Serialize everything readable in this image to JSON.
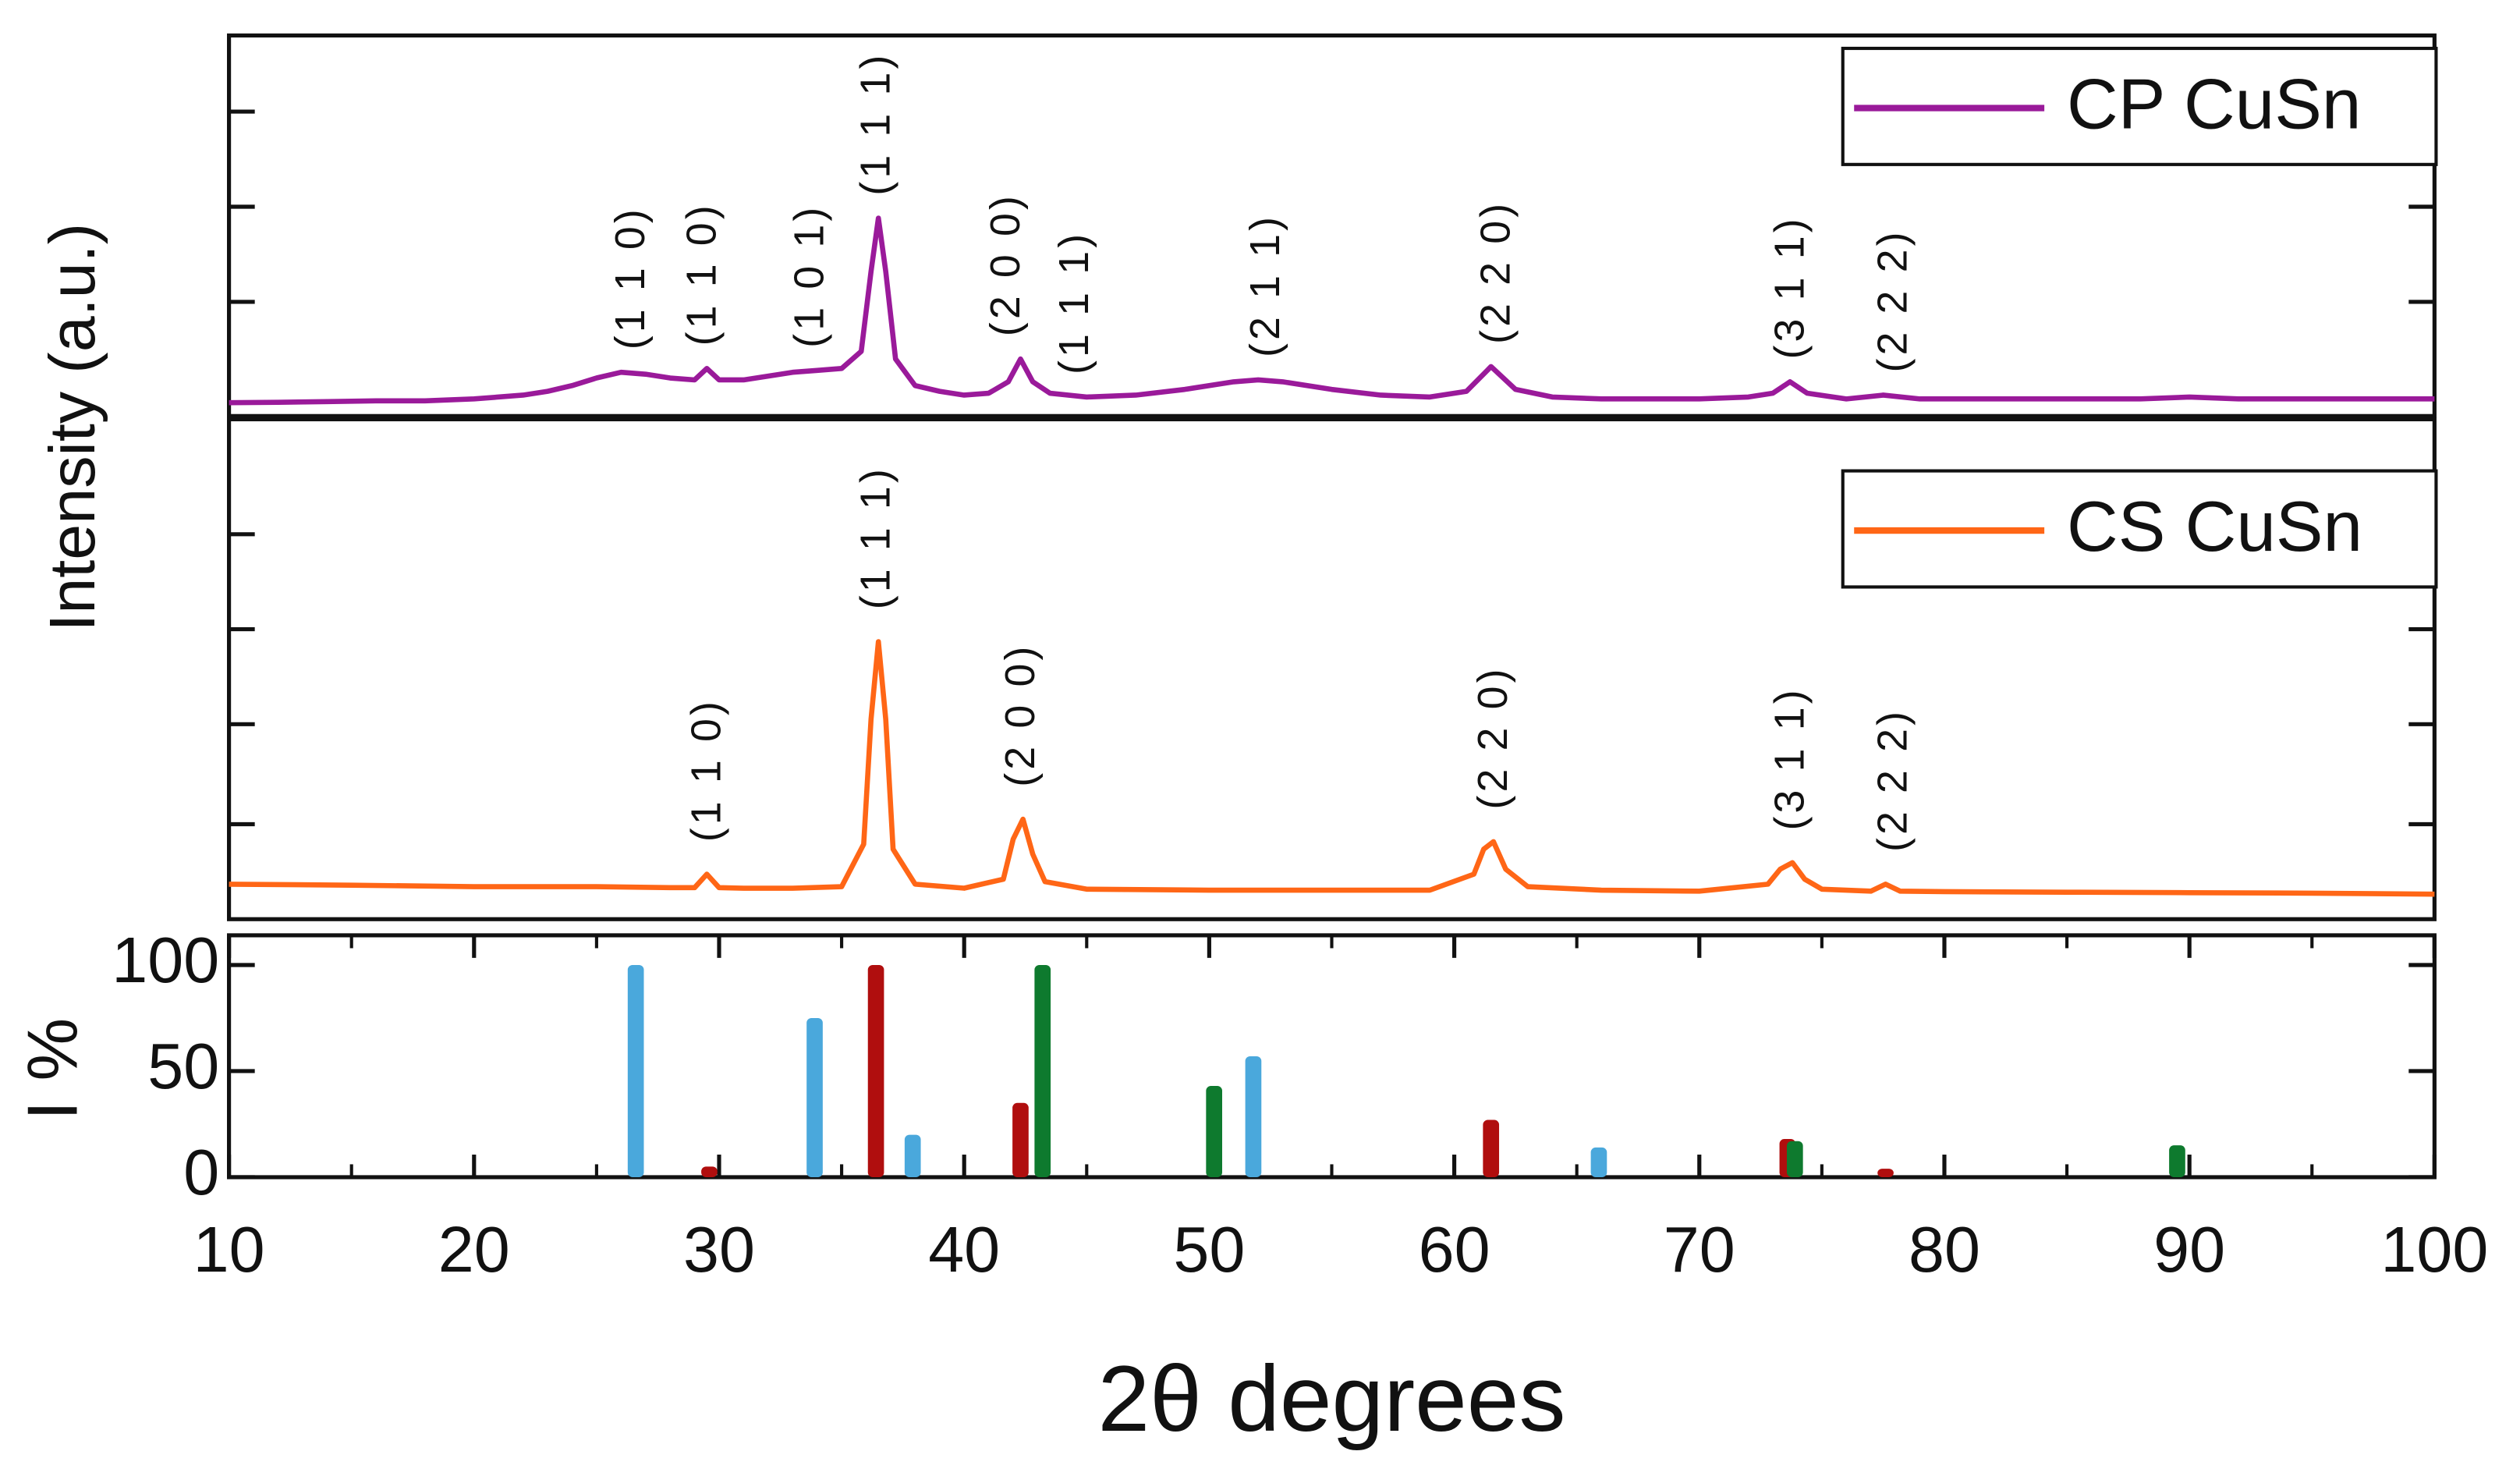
{
  "chart_data": [
    {
      "type": "line",
      "ylabel": "Intensity (a.u.)",
      "xlim": [
        10,
        100
      ],
      "ylim": [
        0,
        100
      ],
      "yticks": [
        30,
        55,
        80
      ],
      "series": [
        {
          "name": "CP CuSn",
          "color": "#9a1a9a",
          "x": [
            10,
            12,
            14,
            16,
            18,
            20,
            22,
            23,
            24,
            25,
            26,
            27,
            28,
            29,
            29.5,
            30,
            31,
            32,
            33,
            34,
            35,
            35.8,
            36.2,
            36.5,
            36.8,
            37.2,
            38,
            39,
            40,
            41,
            41.8,
            42.3,
            42.8,
            43.5,
            45,
            47,
            49,
            51,
            52,
            53,
            55,
            57,
            59,
            60.5,
            61.5,
            62.5,
            64,
            66,
            68,
            70,
            72,
            73,
            73.7,
            74.4,
            76,
            77.5,
            79,
            82,
            85,
            88,
            90,
            92,
            95,
            98,
            100
          ],
          "values": [
            3.5,
            3.6,
            3.8,
            4,
            4,
            4.5,
            5.5,
            6.5,
            8,
            10,
            11.5,
            11,
            10,
            9.5,
            12.5,
            9.5,
            9.5,
            10.5,
            11.5,
            12,
            12.5,
            17,
            38,
            52,
            38,
            15,
            8,
            6.5,
            5.5,
            6,
            9,
            15,
            9,
            6,
            5,
            5.5,
            7,
            9,
            9.5,
            9,
            7,
            5.5,
            5,
            6.5,
            13,
            7,
            5,
            4.5,
            4.5,
            4.5,
            5,
            6,
            9,
            6,
            4.5,
            5.5,
            4.5,
            4.5,
            4.5,
            4.5,
            5,
            4.5,
            4.5,
            4.5,
            4.5
          ]
        }
      ],
      "annotations": [
        {
          "text": "(1 1 0)",
          "x": 26.5
        },
        {
          "text": "(1 1 0)",
          "x": 29.4
        },
        {
          "text": "(1 0 1)",
          "x": 33.8
        },
        {
          "text": "(1 1 1)",
          "x": 36.5
        },
        {
          "text": "(2 0 0)",
          "x": 41.8
        },
        {
          "text": "(1 1 1)",
          "x": 44.6
        },
        {
          "text": "(2 1 1)",
          "x": 52.4
        },
        {
          "text": "(2 2 0)",
          "x": 61.8
        },
        {
          "text": "(3 1 1)",
          "x": 73.8
        },
        {
          "text": "(2 2 2)",
          "x": 78
        }
      ]
    },
    {
      "type": "line",
      "xlim": [
        10,
        100
      ],
      "ylim": [
        0,
        100
      ],
      "yticks": [
        19,
        39,
        58,
        77
      ],
      "series": [
        {
          "name": "CS CuSn",
          "color": "#ff6616",
          "x": [
            10,
            15,
            20,
            25,
            28,
            29,
            29.5,
            30,
            31,
            33,
            35,
            35.9,
            36.2,
            36.5,
            36.8,
            37.1,
            38,
            40,
            41.6,
            42.0,
            42.4,
            42.8,
            43.3,
            45,
            50,
            55,
            59,
            60.8,
            61.2,
            61.6,
            62.1,
            63,
            66,
            70,
            72.8,
            73.3,
            73.8,
            74.3,
            75,
            77,
            77.6,
            78.2,
            80,
            85,
            90,
            95,
            100
          ],
          "values": [
            7,
            6.8,
            6.5,
            6.5,
            6.3,
            6.3,
            9,
            6.3,
            6.2,
            6.2,
            6.5,
            15,
            40,
            55.5,
            40,
            14,
            7,
            6.2,
            8,
            16,
            20,
            13,
            7.5,
            6,
            5.8,
            5.8,
            5.8,
            9,
            14,
            15.5,
            10,
            6.5,
            5.8,
            5.6,
            7,
            10,
            11.3,
            8,
            6,
            5.6,
            7,
            5.6,
            5.5,
            5.4,
            5.3,
            5.2,
            5
          ]
        }
      ],
      "annotations": [
        {
          "text": "(1 1 0)",
          "x": 29.6
        },
        {
          "text": "(1 1 1)",
          "x": 36.5
        },
        {
          "text": "(2 0 0)",
          "x": 42.4
        },
        {
          "text": "(2 2 0)",
          "x": 61.7
        },
        {
          "text": "(3 1 1)",
          "x": 73.8
        },
        {
          "text": "(2 2 2)",
          "x": 78
        }
      ]
    },
    {
      "type": "bar",
      "ylabel": "I %",
      "xlabel": "2θ degrees",
      "xlim": [
        10,
        100
      ],
      "xticks": [
        10,
        20,
        30,
        40,
        50,
        60,
        70,
        80,
        90,
        100
      ],
      "ylim": [
        0,
        114
      ],
      "yticks": [
        0,
        50,
        100
      ],
      "series": [
        {
          "color": "#4aa8dc",
          "x": [
            26.6,
            33.9,
            37.9,
            51.8,
            65.9
          ],
          "values": [
            100,
            75,
            20,
            57,
            14
          ]
        },
        {
          "color": "#b00e0e",
          "x": [
            29.6,
            36.4,
            42.3,
            61.5,
            73.6,
            77.6
          ],
          "values": [
            5,
            100,
            35,
            27,
            18,
            4
          ]
        },
        {
          "color": "#0e7a2e",
          "x": [
            43.2,
            50.2,
            73.9,
            89.5
          ],
          "values": [
            100,
            43,
            17,
            15
          ]
        }
      ]
    }
  ]
}
